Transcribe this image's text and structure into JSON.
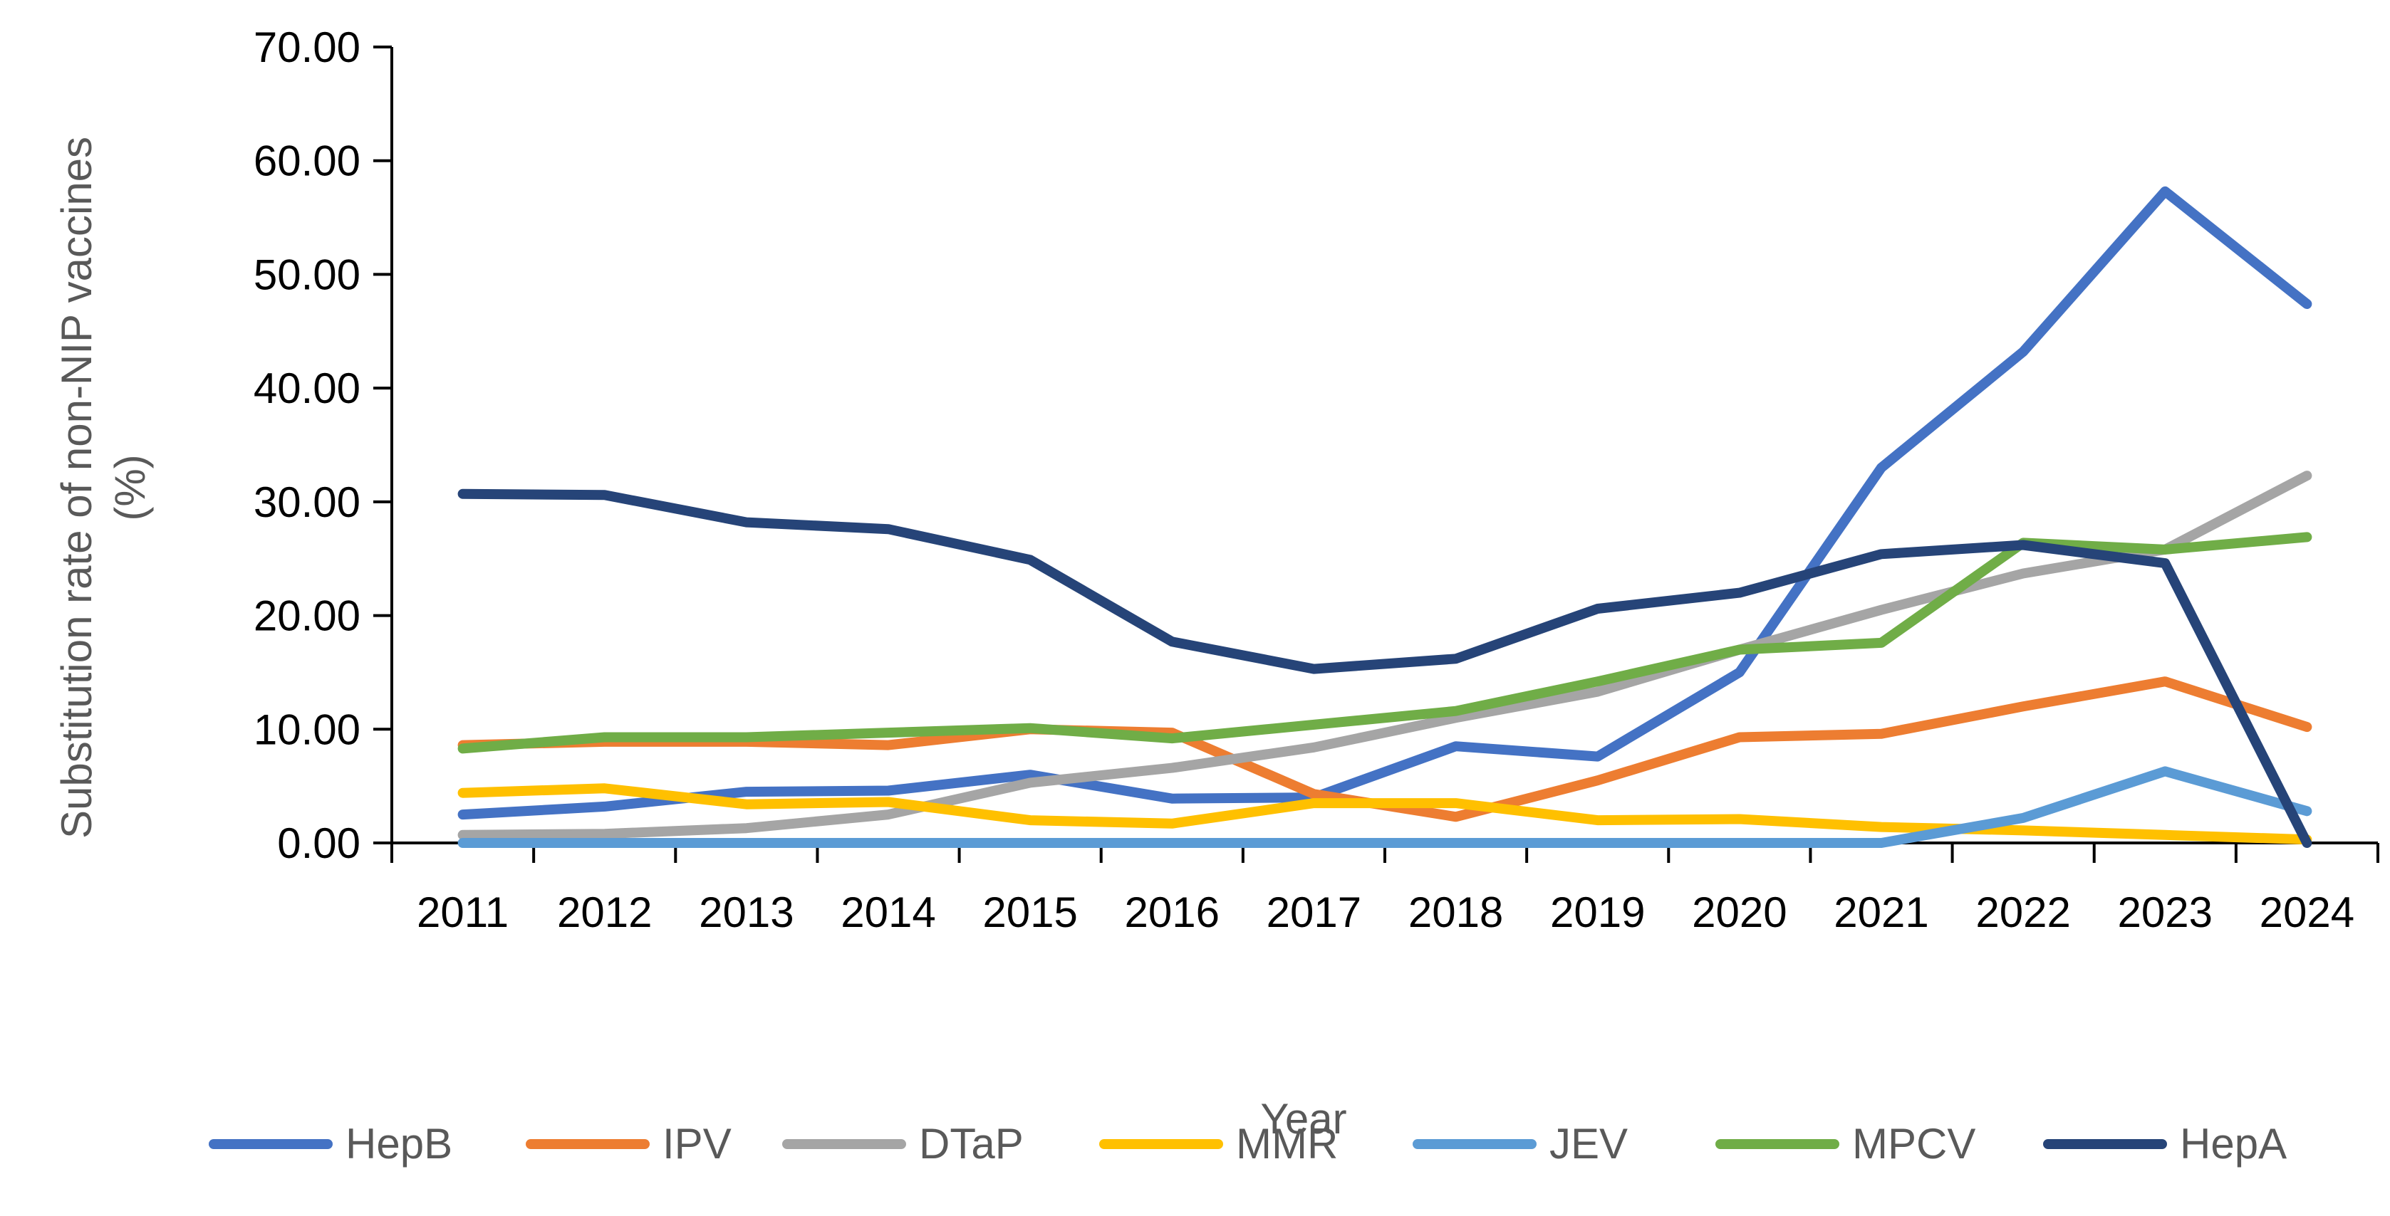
{
  "chart_data": {
    "type": "line",
    "title": "",
    "xlabel": "Year",
    "ylabel": "Substitution rate of non-NIP vaccines (%)",
    "ylim": [
      0,
      70
    ],
    "yticks": [
      "0.00",
      "10.00",
      "20.00",
      "30.00",
      "40.00",
      "50.00",
      "60.00",
      "70.00"
    ],
    "categories": [
      "2011",
      "2012",
      "2013",
      "2014",
      "2015",
      "2016",
      "2017",
      "2018",
      "2019",
      "2020",
      "2021",
      "2022",
      "2023",
      "2024"
    ],
    "legend_position": "bottom",
    "grid": false,
    "series": [
      {
        "name": "HepB",
        "color": "#4472C4",
        "values": [
          2.5,
          3.2,
          4.5,
          4.6,
          6.0,
          3.9,
          4.0,
          8.5,
          7.6,
          15.0,
          33.0,
          43.2,
          57.3,
          47.4
        ]
      },
      {
        "name": "IPV",
        "color": "#ED7D31",
        "values": [
          8.6,
          8.9,
          8.9,
          8.6,
          10.0,
          9.7,
          4.3,
          2.3,
          5.5,
          9.3,
          9.6,
          12.0,
          14.2,
          10.2
        ]
      },
      {
        "name": "DTaP",
        "color": "#A5A5A5",
        "values": [
          0.7,
          0.8,
          1.3,
          2.5,
          5.3,
          6.6,
          8.4,
          11.0,
          13.3,
          17.0,
          20.5,
          23.7,
          25.8,
          32.3
        ]
      },
      {
        "name": "MMR",
        "color": "#FFC000",
        "values": [
          4.4,
          4.8,
          3.4,
          3.6,
          2.0,
          1.7,
          3.5,
          3.5,
          2.0,
          2.1,
          1.4,
          1.1,
          0.7,
          0.3
        ]
      },
      {
        "name": "JEV",
        "color": "#5B9BD5",
        "values": [
          0,
          0,
          0,
          0,
          0,
          0,
          0,
          0,
          0,
          0,
          0,
          2.2,
          6.3,
          2.8
        ]
      },
      {
        "name": "MPCV",
        "color": "#70AD47",
        "values": [
          8.3,
          9.3,
          9.3,
          9.7,
          10.1,
          9.2,
          10.4,
          11.6,
          14.2,
          17.0,
          17.6,
          26.4,
          25.8,
          26.9
        ]
      },
      {
        "name": "HepA",
        "color": "#264478",
        "values": [
          30.7,
          30.6,
          28.2,
          27.6,
          24.9,
          17.7,
          15.3,
          16.2,
          20.6,
          22.0,
          25.4,
          26.2,
          24.6,
          0.0
        ]
      }
    ]
  }
}
